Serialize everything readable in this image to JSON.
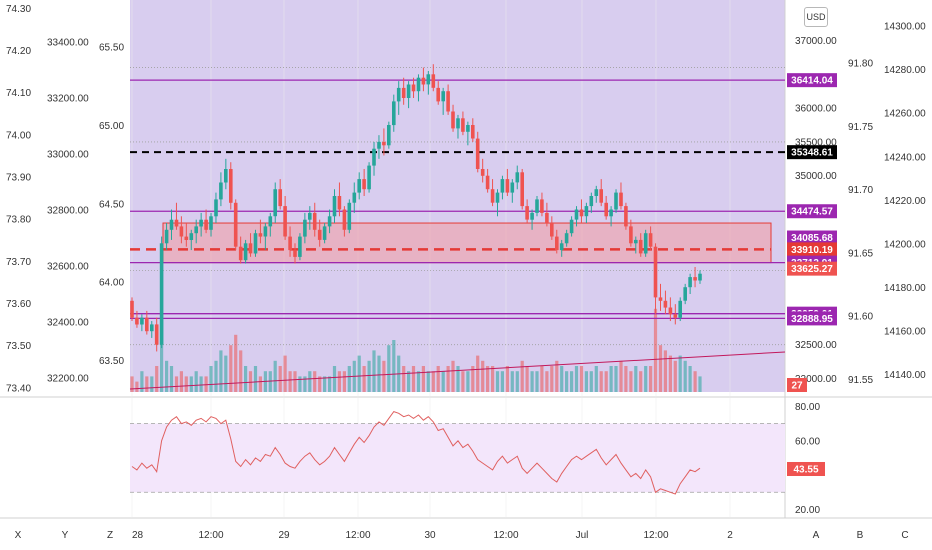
{
  "currency_button": "USD",
  "colors": {
    "plot_bg": "#d8cdef",
    "rsi_bg": "#f3e6fb",
    "up": "#26a69a",
    "down": "#ef5350",
    "purple_level": "#9c27b0",
    "rsi_line": "#e06060",
    "red_zone_fill": "#f2a0a6",
    "trend_line": "#c2185b"
  },
  "chart_data": {
    "type": "candlestick",
    "x_tick_labels": [
      "28",
      "12:00",
      "29",
      "12:00",
      "30",
      "12:00",
      "Jul",
      "12:00",
      "2"
    ],
    "main_axis": {
      "ylim": [
        31800,
        37600
      ],
      "tick_labels": [
        "37000.00",
        "36000.00",
        "35500.00",
        "35000.00",
        "32500.00",
        "32000.00"
      ]
    },
    "left_axis_1": {
      "ylim": [
        73.39,
        74.32
      ],
      "tick_labels": [
        "74.30",
        "74.20",
        "74.10",
        "74.00",
        "73.90",
        "73.80",
        "73.70",
        "73.60",
        "73.50",
        "73.40"
      ]
    },
    "left_axis_2": {
      "ylim": [
        32150,
        33550
      ],
      "tick_labels": [
        "33400.00",
        "33200.00",
        "33000.00",
        "32800.00",
        "32600.00",
        "32400.00",
        "32200.00"
      ]
    },
    "overlay_axis": {
      "ylim": [
        63.3,
        65.8
      ],
      "tick_labels": [
        "65.50",
        "65.00",
        "64.50",
        "64.00",
        "63.50"
      ]
    },
    "right_axis_1": {
      "ylim": [
        91.54,
        91.85
      ],
      "tick_labels": [
        "91.80",
        "91.75",
        "91.70",
        "91.65",
        "91.60",
        "91.55"
      ]
    },
    "right_axis_2": {
      "ylim": [
        14132,
        14312
      ],
      "tick_labels": [
        "14300.00",
        "14280.00",
        "14260.00",
        "14240.00",
        "14220.00",
        "14200.00",
        "14180.00",
        "14160.00",
        "14140.00"
      ]
    },
    "price_labels": [
      {
        "value": 36414.04,
        "text": "36414.04",
        "color": "#9c27b0"
      },
      {
        "value": 35348.61,
        "text": "35348.61",
        "color": "#000000"
      },
      {
        "value": 34474.57,
        "text": "34474.57",
        "color": "#9c27b0"
      },
      {
        "value": 34085.68,
        "text": "34085.68",
        "color": "#9c27b0"
      },
      {
        "value": 33910.19,
        "text": "33910.19",
        "color": "#e53935"
      },
      {
        "value": 33713.91,
        "text": "33713.91",
        "color": "#9c27b0"
      },
      {
        "value": 33625.27,
        "text": "33625.27",
        "color": "#ef5350"
      },
      {
        "value": 32959.01,
        "text": "32959.01",
        "color": "#9c27b0"
      },
      {
        "value": 32888.95,
        "text": "32888.95",
        "color": "#9c27b0"
      }
    ],
    "level_lines": [
      {
        "value": 36414.04,
        "style": "solid",
        "color": "#9c27b0"
      },
      {
        "value": 35348.61,
        "style": "dashed",
        "color": "#000000"
      },
      {
        "value": 34474.57,
        "style": "solid",
        "color": "#9c27b0"
      },
      {
        "value": 33713.91,
        "style": "solid",
        "color": "#9c27b0"
      },
      {
        "value": 32959.01,
        "style": "solid",
        "color": "#9c27b0"
      },
      {
        "value": 32888.95,
        "style": "solid",
        "color": "#9c27b0"
      }
    ],
    "zone": {
      "from": 33713.91,
      "to": 34300,
      "mid_dashed": 33910.19
    },
    "volume_badge": "27",
    "candles": [
      [
        33150,
        33200,
        32850,
        32900
      ],
      [
        32900,
        33000,
        32750,
        32800
      ],
      [
        32800,
        32950,
        32700,
        32900
      ],
      [
        32900,
        33000,
        32650,
        32700
      ],
      [
        32700,
        32850,
        32600,
        32800
      ],
      [
        32800,
        32900,
        32400,
        32500
      ],
      [
        32500,
        34100,
        32450,
        34000
      ],
      [
        34000,
        34300,
        33900,
        34200
      ],
      [
        34200,
        34500,
        34050,
        34350
      ],
      [
        34350,
        34600,
        34200,
        34250
      ],
      [
        34250,
        34400,
        34000,
        34100
      ],
      [
        34100,
        34300,
        33950,
        34050
      ],
      [
        34050,
        34200,
        33900,
        34150
      ],
      [
        34150,
        34350,
        34000,
        34250
      ],
      [
        34250,
        34450,
        34100,
        34350
      ],
      [
        34350,
        34500,
        34150,
        34200
      ],
      [
        34200,
        34450,
        34100,
        34400
      ],
      [
        34400,
        34750,
        34300,
        34650
      ],
      [
        34650,
        35050,
        34550,
        34900
      ],
      [
        34900,
        35250,
        34800,
        35100
      ],
      [
        35100,
        35200,
        34500,
        34600
      ],
      [
        34600,
        34650,
        33900,
        33950
      ],
      [
        33950,
        34100,
        33700,
        33750
      ],
      [
        33750,
        34050,
        33700,
        34000
      ],
      [
        34000,
        34150,
        33800,
        33850
      ],
      [
        33850,
        34200,
        33800,
        34150
      ],
      [
        34150,
        34350,
        34000,
        34100
      ],
      [
        34100,
        34300,
        33900,
        34250
      ],
      [
        34250,
        34450,
        34100,
        34400
      ],
      [
        34400,
        34900,
        34300,
        34800
      ],
      [
        34800,
        34950,
        34500,
        34550
      ],
      [
        34550,
        34700,
        34050,
        34100
      ],
      [
        34100,
        34250,
        33800,
        33900
      ],
      [
        33900,
        34000,
        33700,
        33800
      ],
      [
        33800,
        34150,
        33750,
        34100
      ],
      [
        34100,
        34450,
        34000,
        34350
      ],
      [
        34350,
        34550,
        34200,
        34450
      ],
      [
        34450,
        34600,
        34100,
        34200
      ],
      [
        34200,
        34350,
        33950,
        34050
      ],
      [
        34050,
        34300,
        34000,
        34250
      ],
      [
        34250,
        34500,
        34150,
        34400
      ],
      [
        34400,
        34800,
        34300,
        34700
      ],
      [
        34700,
        34900,
        34400,
        34500
      ],
      [
        34500,
        34550,
        34100,
        34200
      ],
      [
        34200,
        34650,
        34150,
        34600
      ],
      [
        34600,
        34900,
        34450,
        34750
      ],
      [
        34750,
        35050,
        34650,
        34950
      ],
      [
        34950,
        35100,
        34700,
        34800
      ],
      [
        34800,
        35200,
        34750,
        35150
      ],
      [
        35150,
        35500,
        35000,
        35400
      ],
      [
        35400,
        35600,
        35250,
        35500
      ],
      [
        35500,
        35700,
        35300,
        35450
      ],
      [
        35450,
        35800,
        35400,
        35750
      ],
      [
        35750,
        36200,
        35650,
        36100
      ],
      [
        36100,
        36400,
        35900,
        36300
      ],
      [
        36300,
        36450,
        36050,
        36150
      ],
      [
        36150,
        36400,
        36000,
        36350
      ],
      [
        36350,
        36450,
        36150,
        36250
      ],
      [
        36250,
        36500,
        36100,
        36450
      ],
      [
        36450,
        36600,
        36250,
        36350
      ],
      [
        36350,
        36550,
        36200,
        36500
      ],
      [
        36500,
        36650,
        36250,
        36300
      ],
      [
        36300,
        36400,
        36050,
        36100
      ],
      [
        36100,
        36300,
        35900,
        36250
      ],
      [
        36250,
        36350,
        35900,
        35950
      ],
      [
        35950,
        36050,
        35650,
        35700
      ],
      [
        35700,
        35900,
        35550,
        35850
      ],
      [
        35850,
        35950,
        35600,
        35650
      ],
      [
        35650,
        35800,
        35450,
        35750
      ],
      [
        35750,
        35850,
        35500,
        35550
      ],
      [
        35550,
        35650,
        35050,
        35100
      ],
      [
        35100,
        35250,
        34900,
        35000
      ],
      [
        35000,
        35100,
        34750,
        34800
      ],
      [
        34800,
        34950,
        34550,
        34600
      ],
      [
        34600,
        34800,
        34400,
        34750
      ],
      [
        34750,
        35000,
        34650,
        34950
      ],
      [
        34950,
        35100,
        34700,
        34750
      ],
      [
        34750,
        34950,
        34600,
        34900
      ],
      [
        34900,
        35150,
        34800,
        35050
      ],
      [
        35050,
        35100,
        34500,
        34550
      ],
      [
        34550,
        34650,
        34300,
        34350
      ],
      [
        34350,
        34500,
        34200,
        34450
      ],
      [
        34450,
        34700,
        34400,
        34650
      ],
      [
        34650,
        34750,
        34400,
        34450
      ],
      [
        34450,
        34600,
        34250,
        34300
      ],
      [
        34300,
        34400,
        34050,
        34100
      ],
      [
        34100,
        34200,
        33850,
        33900
      ],
      [
        33900,
        34050,
        33800,
        34000
      ],
      [
        34000,
        34200,
        33950,
        34150
      ],
      [
        34150,
        34400,
        34100,
        34350
      ],
      [
        34350,
        34550,
        34250,
        34500
      ],
      [
        34500,
        34650,
        34300,
        34400
      ],
      [
        34400,
        34600,
        34300,
        34550
      ],
      [
        34550,
        34750,
        34450,
        34700
      ],
      [
        34700,
        34850,
        34600,
        34800
      ],
      [
        34800,
        34950,
        34550,
        34600
      ],
      [
        34600,
        34700,
        34350,
        34400
      ],
      [
        34400,
        34550,
        34250,
        34500
      ],
      [
        34500,
        34800,
        34450,
        34750
      ],
      [
        34750,
        34900,
        34500,
        34550
      ],
      [
        34550,
        34600,
        34200,
        34250
      ],
      [
        34250,
        34350,
        33950,
        34000
      ],
      [
        34000,
        34100,
        33850,
        34050
      ],
      [
        34050,
        34150,
        33800,
        33850
      ],
      [
        33850,
        34200,
        33800,
        34150
      ],
      [
        34150,
        34250,
        33900,
        33950
      ],
      [
        33950,
        34000,
        32950,
        33200
      ],
      [
        33200,
        33400,
        33000,
        33150
      ],
      [
        33150,
        33300,
        32950,
        33050
      ],
      [
        33050,
        33200,
        32850,
        32950
      ],
      [
        32950,
        33100,
        32800,
        32900
      ],
      [
        32900,
        33200,
        32850,
        33150
      ],
      [
        33150,
        33400,
        33100,
        33350
      ],
      [
        33350,
        33550,
        33250,
        33500
      ],
      [
        33500,
        33650,
        33350,
        33450
      ],
      [
        33450,
        33600,
        33400,
        33550
      ]
    ],
    "volumes": [
      3,
      2,
      4,
      3,
      3,
      5,
      14,
      6,
      5,
      3,
      4,
      3,
      3,
      4,
      3,
      3,
      5,
      6,
      8,
      7,
      9,
      11,
      8,
      5,
      4,
      5,
      3,
      4,
      4,
      6,
      5,
      7,
      4,
      4,
      3,
      3,
      4,
      4,
      3,
      3,
      3,
      5,
      4,
      4,
      5,
      6,
      7,
      5,
      6,
      8,
      7,
      6,
      9,
      10,
      7,
      5,
      4,
      5,
      4,
      5,
      4,
      4,
      5,
      4,
      5,
      6,
      5,
      4,
      4,
      5,
      7,
      6,
      5,
      5,
      4,
      4,
      5,
      4,
      4,
      6,
      5,
      4,
      4,
      5,
      4,
      5,
      6,
      5,
      4,
      4,
      5,
      5,
      4,
      4,
      5,
      4,
      4,
      5,
      5,
      6,
      5,
      4,
      5,
      4,
      5,
      5,
      16,
      9,
      8,
      7,
      6,
      7,
      6,
      5,
      4,
      3
    ],
    "rsi": {
      "ylim": [
        15,
        82
      ],
      "tick_labels": [
        "80.00",
        "60.00",
        "20.00"
      ],
      "upper_band": 70,
      "lower_band": 30,
      "last_label": "43.55",
      "values": [
        45,
        43,
        47,
        44,
        46,
        42,
        60,
        68,
        72,
        74,
        70,
        71,
        69,
        72,
        73,
        71,
        74,
        73,
        70,
        72,
        61,
        48,
        45,
        49,
        46,
        50,
        48,
        52,
        51,
        56,
        52,
        47,
        45,
        44,
        48,
        51,
        53,
        49,
        46,
        48,
        51,
        56,
        52,
        48,
        53,
        58,
        62,
        59,
        63,
        68,
        71,
        69,
        73,
        77,
        76,
        74,
        75,
        73,
        75,
        72,
        74,
        71,
        66,
        67,
        62,
        57,
        60,
        56,
        58,
        54,
        49,
        47,
        45,
        43,
        48,
        51,
        47,
        49,
        51,
        44,
        41,
        44,
        47,
        44,
        41,
        38,
        36,
        41,
        45,
        49,
        51,
        49,
        51,
        53,
        55,
        50,
        46,
        49,
        52,
        47,
        43,
        39,
        41,
        38,
        43,
        39,
        30,
        32,
        31,
        30,
        29,
        35,
        39,
        43,
        42,
        44
      ]
    }
  },
  "bottom_bar": {
    "x_button": "X",
    "y_button": "Y",
    "z_button": "Z",
    "a_button": "A",
    "b_button": "B",
    "c_button": "C"
  }
}
